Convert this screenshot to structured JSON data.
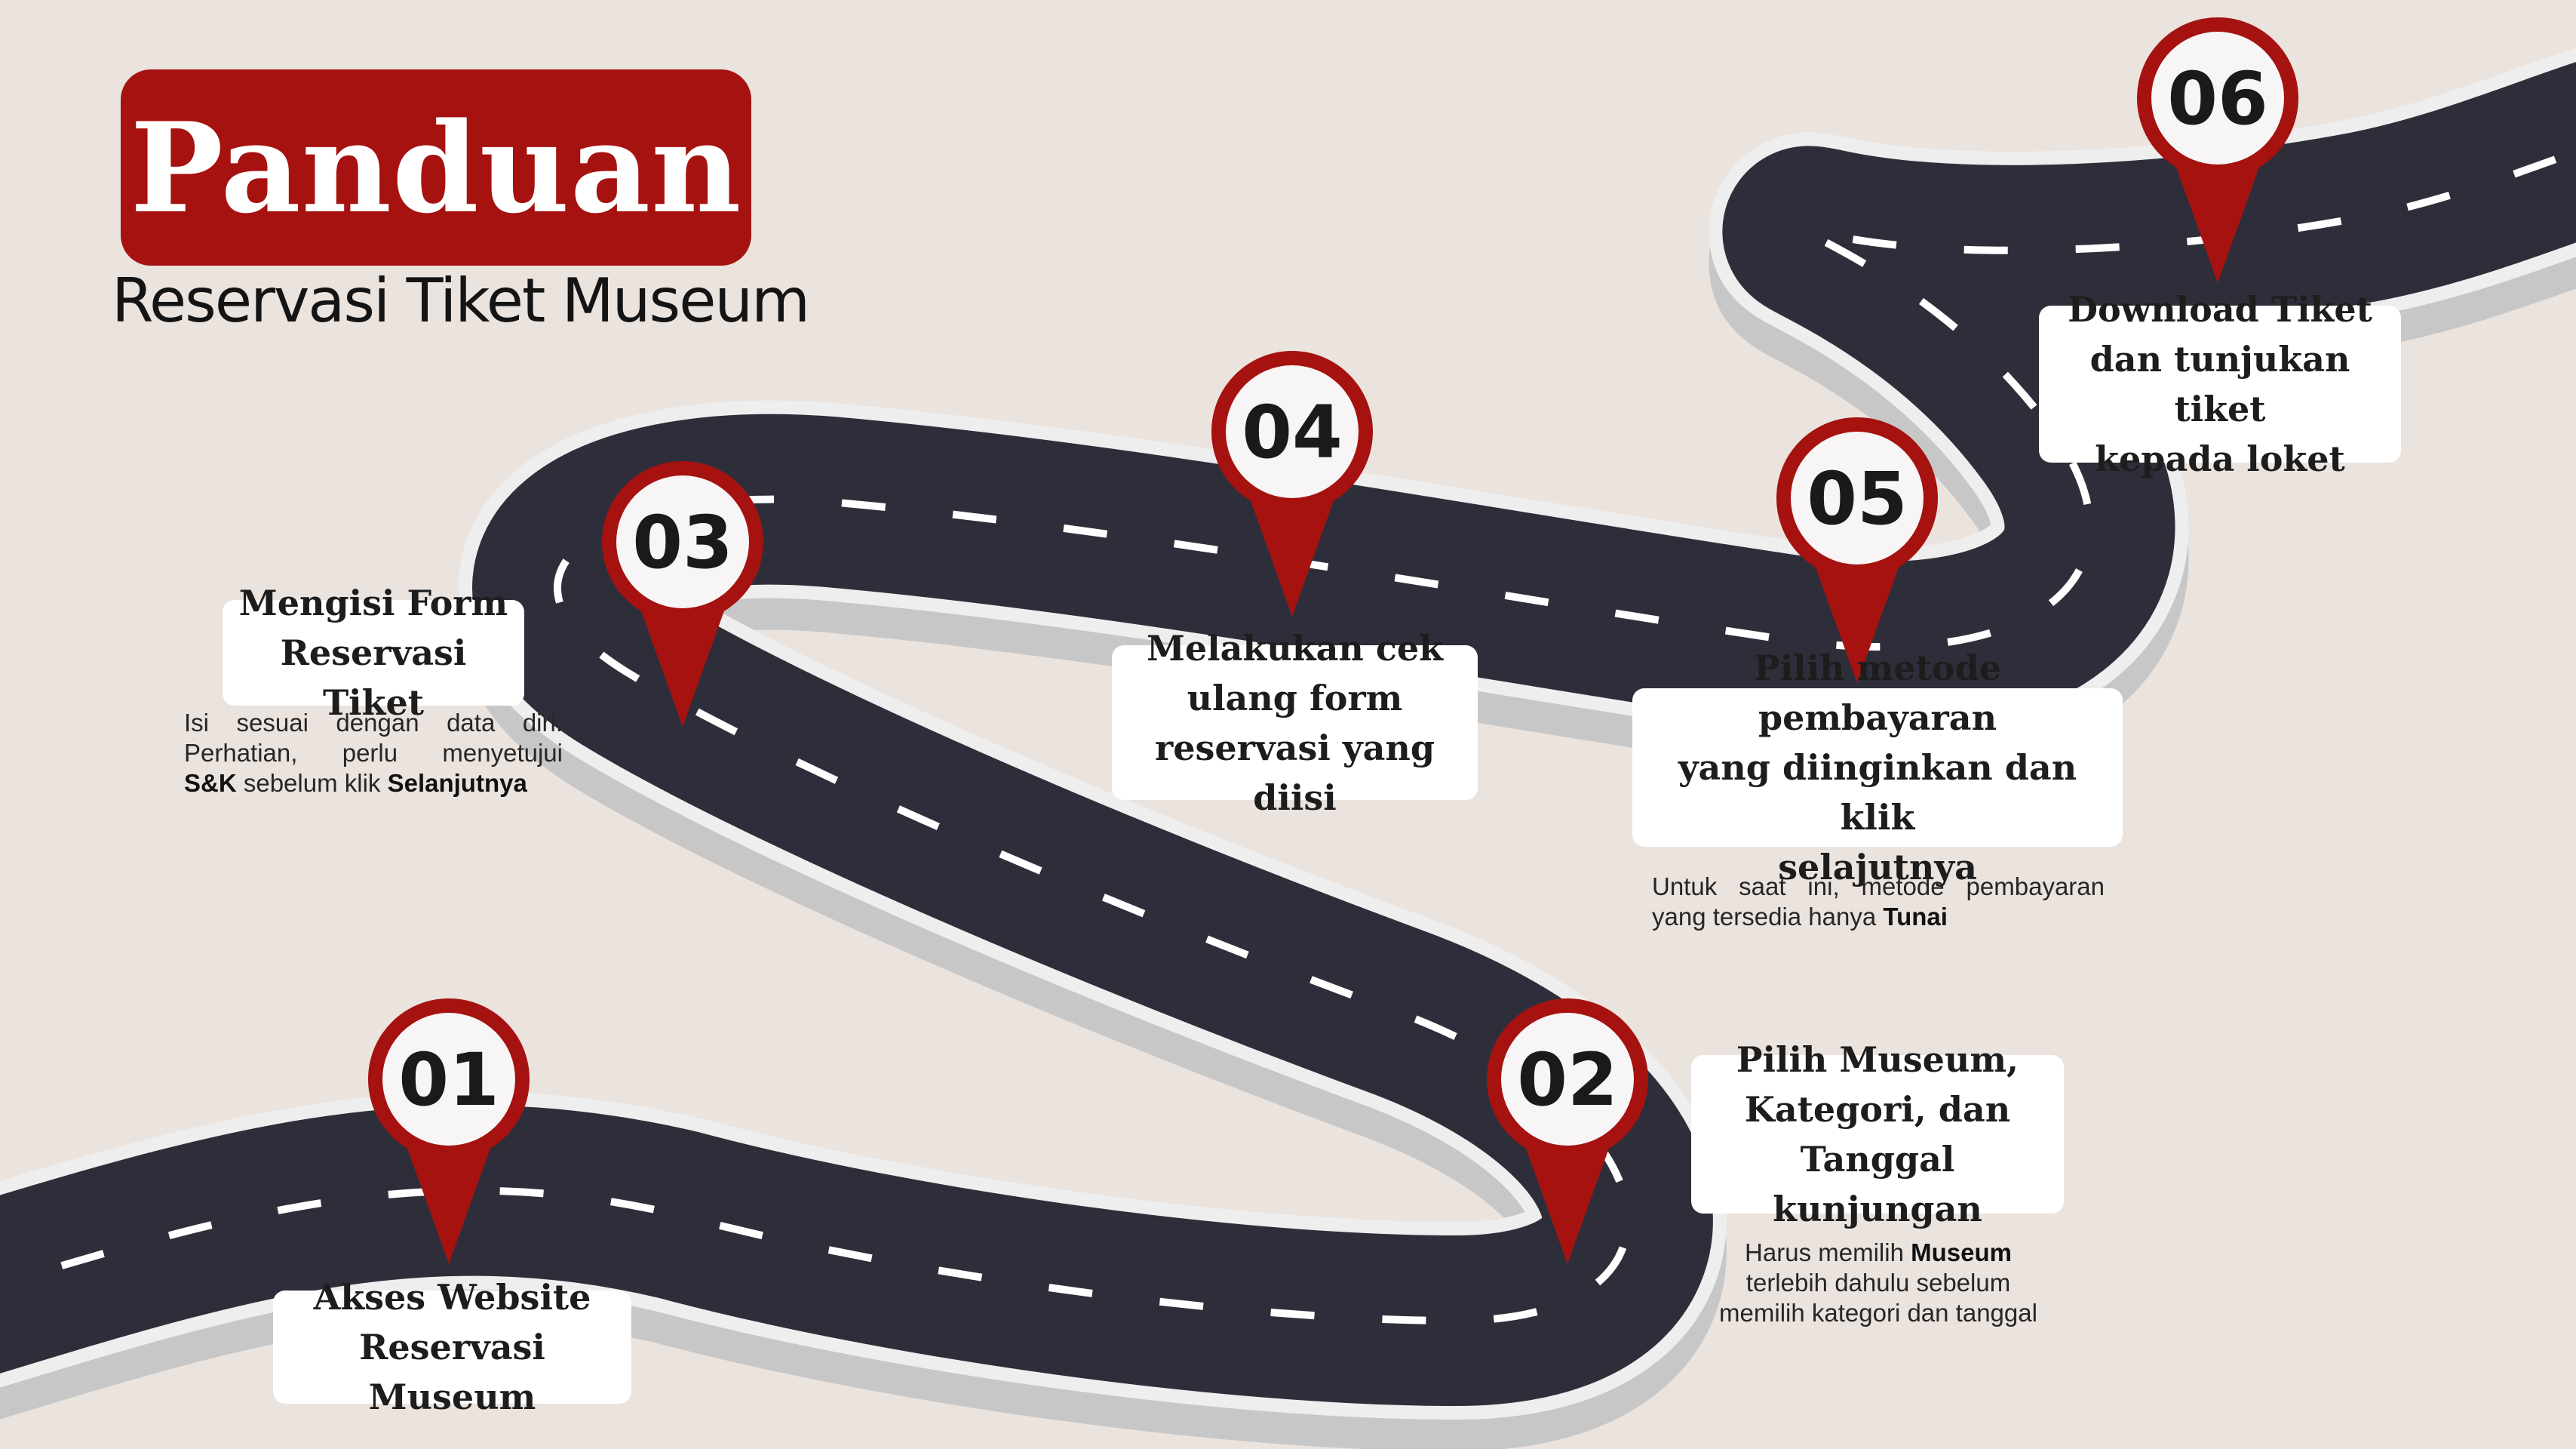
{
  "title": "Panduan",
  "subtitle": "Reservasi Tiket Museum",
  "colors": {
    "background": "#ebe3de",
    "accent_red": "#a51210",
    "road": "#2e2e3b",
    "road_edge": "#d2d2d2",
    "lane_marking": "#ffffff"
  },
  "steps": [
    {
      "number": "01",
      "label_lines": [
        "Akses Website",
        "Reservasi Museum"
      ]
    },
    {
      "number": "02",
      "label_lines": [
        "Pilih Museum,",
        "Kategori, dan",
        "Tanggal kunjungan"
      ],
      "note": {
        "line1_pre": "Harus memilih ",
        "line1_bold": "Museum",
        "line2": "terlebih dahulu sebelum",
        "line3": "memilih kategori dan tanggal"
      }
    },
    {
      "number": "03",
      "label_lines": [
        "Mengisi Form",
        "Reservasi Tiket"
      ],
      "note": {
        "line1": "Isi sesuai dengan data diri.",
        "line2": "Perhatian, perlu menyetujui",
        "line3_bold1": "S&K",
        "line3_mid": " sebelum klik ",
        "line3_bold2": "Selanjutnya"
      }
    },
    {
      "number": "04",
      "label_lines": [
        "Melakukan cek",
        "ulang  form",
        "reservasi yang diisi"
      ]
    },
    {
      "number": "05",
      "label_lines": [
        "Pilih metode  pembayaran",
        "yang diinginkan  dan klik",
        "selajutnya"
      ],
      "note": {
        "line1": "Untuk saat ini, metode pembayaran",
        "line2_pre": "yang tersedia hanya ",
        "line2_bold": "Tunai"
      }
    },
    {
      "number": "06",
      "label_lines": [
        "Download Tiket",
        "dan tunjukan tiket",
        "kepada loket"
      ]
    }
  ]
}
